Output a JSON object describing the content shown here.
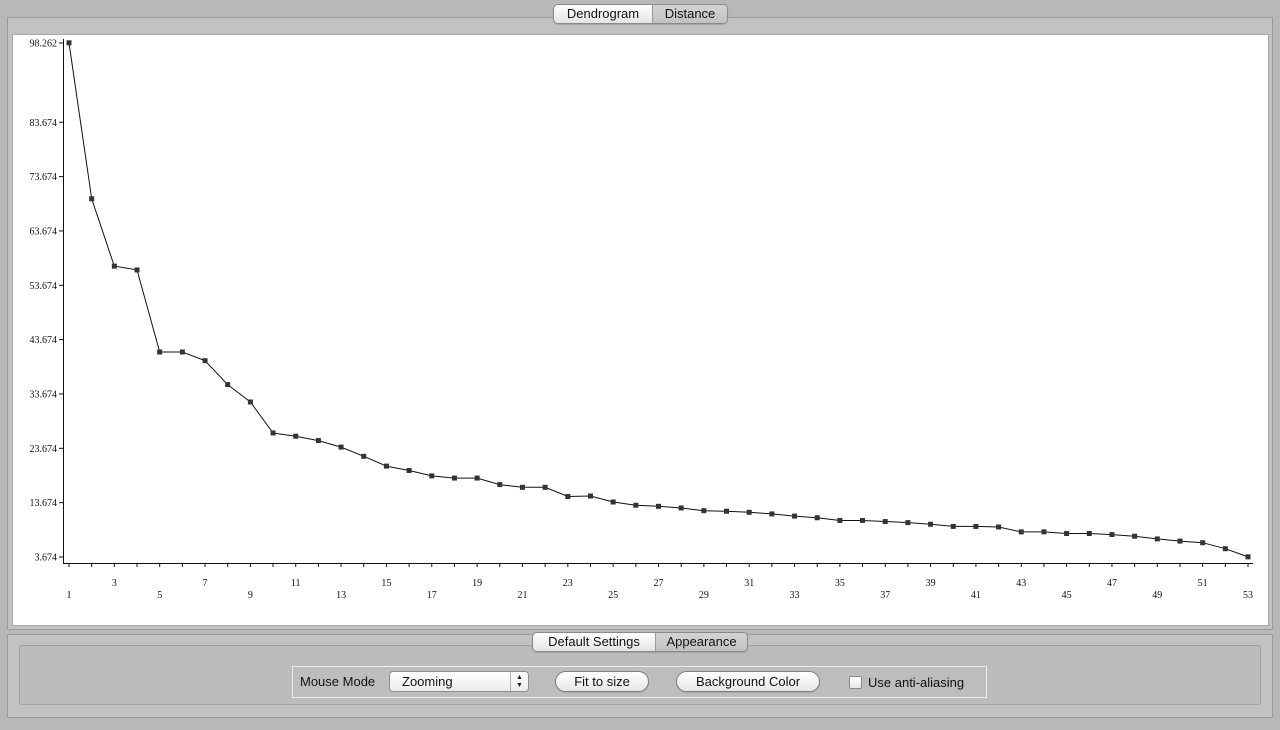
{
  "view_tabs": [
    {
      "label": "Dendrogram",
      "active": false
    },
    {
      "label": "Distance",
      "active": true
    }
  ],
  "settings_tabs": [
    {
      "label": "Default Settings",
      "active": false
    },
    {
      "label": "Appearance",
      "active": true
    }
  ],
  "settings": {
    "mouse_mode_label": "Mouse Mode",
    "mouse_mode_value": "Zooming",
    "fit_label": "Fit to size",
    "background_label": "Background Color",
    "anti_alias_label": "Use anti-aliasing",
    "anti_alias_checked": false
  },
  "chart_data": {
    "type": "line",
    "y_ticks": [
      "98.262",
      "83.674",
      "73.674",
      "63.674",
      "53.674",
      "43.674",
      "33.674",
      "23.674",
      "13.674",
      "3.674"
    ],
    "ylim": [
      3.674,
      98.262
    ],
    "xlim": [
      1,
      53
    ],
    "x_tick_labels": [
      1,
      3,
      5,
      7,
      9,
      11,
      13,
      15,
      17,
      19,
      21,
      23,
      25,
      27,
      29,
      31,
      33,
      35,
      37,
      39,
      41,
      43,
      45,
      47,
      49,
      51,
      53
    ],
    "x": [
      1,
      2,
      3,
      4,
      5,
      6,
      7,
      8,
      9,
      10,
      11,
      12,
      13,
      14,
      15,
      16,
      17,
      18,
      19,
      20,
      21,
      22,
      23,
      24,
      25,
      26,
      27,
      28,
      29,
      30,
      31,
      32,
      33,
      34,
      35,
      36,
      37,
      38,
      39,
      40,
      41,
      42,
      43,
      44,
      45,
      46,
      47,
      48,
      49,
      50,
      51,
      52,
      53
    ],
    "y": [
      98.3,
      69.6,
      57.2,
      56.5,
      41.4,
      41.4,
      39.8,
      35.4,
      32.2,
      26.5,
      25.9,
      25.1,
      23.9,
      22.2,
      20.4,
      19.6,
      18.6,
      18.2,
      18.2,
      17.0,
      16.5,
      16.5,
      14.8,
      14.9,
      13.8,
      13.2,
      13.0,
      12.7,
      12.2,
      12.1,
      11.9,
      11.6,
      11.2,
      10.9,
      10.4,
      10.4,
      10.2,
      10.0,
      9.7,
      9.3,
      9.3,
      9.2,
      8.3,
      8.3,
      8.0,
      8.0,
      7.8,
      7.5,
      7.0,
      6.6,
      6.3,
      5.2,
      3.7
    ],
    "grid": false,
    "marker": "square"
  }
}
